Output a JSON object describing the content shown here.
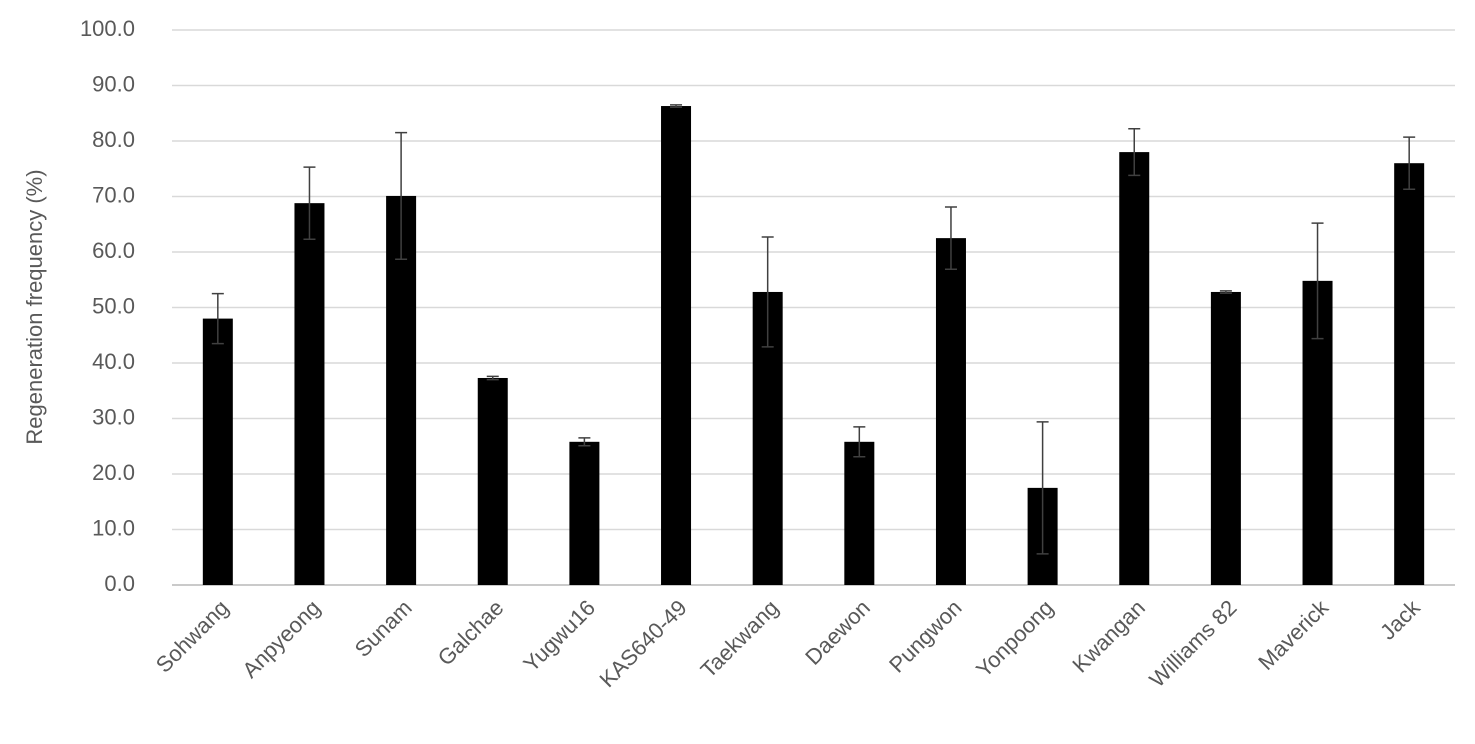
{
  "chart_data": {
    "type": "bar",
    "y_label": "Regeneration frequency (%)",
    "categories": [
      "Sohwang",
      "Anpyeong",
      "Sunam",
      "Galchae",
      "Yugwu16",
      "KAS640-49",
      "Taekwang",
      "Daewon",
      "Pungwon",
      "Yonpoong",
      "Kwangan",
      "Williams 82",
      "Maverick",
      "Jack"
    ],
    "values": [
      48.0,
      68.8,
      70.1,
      37.3,
      25.8,
      86.3,
      52.8,
      25.8,
      62.5,
      17.5,
      78.0,
      52.8,
      54.8,
      76.0
    ],
    "errors": [
      4.5,
      6.5,
      11.4,
      0.3,
      0.7,
      0.2,
      9.9,
      2.7,
      5.6,
      11.9,
      4.2,
      0.2,
      10.4,
      4.7
    ],
    "color": "#000000",
    "ylim": [
      0,
      100
    ],
    "yticks": [
      {
        "value": 0,
        "label": "0.0"
      },
      {
        "value": 10,
        "label": "10.0"
      },
      {
        "value": 20,
        "label": "20.0"
      },
      {
        "value": 30,
        "label": "30.0"
      },
      {
        "value": 40,
        "label": "40.0"
      },
      {
        "value": 50,
        "label": "50.0"
      },
      {
        "value": 60,
        "label": "60.0"
      },
      {
        "value": 70,
        "label": "70.0"
      },
      {
        "value": 80,
        "label": "80.0"
      },
      {
        "value": 90,
        "label": "90.0"
      },
      {
        "value": 100,
        "label": "100.0"
      }
    ],
    "grid": true
  }
}
